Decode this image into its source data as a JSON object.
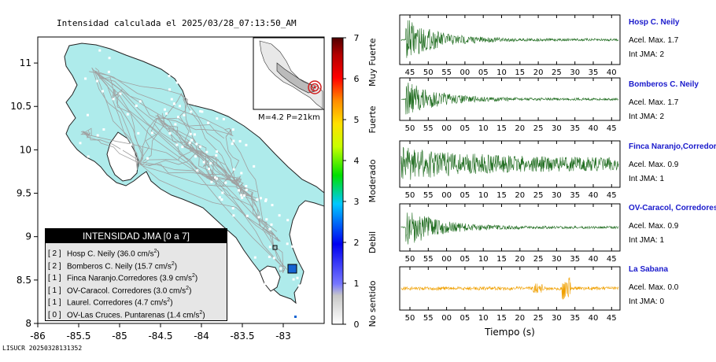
{
  "title": "Intensidad calculada el 2025/03/28_07:13:50_AM",
  "footer": "LISUCR 20250328131352",
  "colors": {
    "land": "#aeebeb",
    "sea": "#ffffff",
    "roads": "#a0a0a0",
    "trace_green": "#1d6b1d",
    "trace_orange": "#f0a000",
    "station_marker": "#1464d2",
    "epicenter": "#d21e1e"
  },
  "inset": {
    "label": "M=4.2 P=21km"
  },
  "legend": {
    "title": "INTENSIDAD JMA [0 a 7]",
    "rows": [
      {
        "jma": "[ 2 ]",
        "text": "Hosp C. Neily (36.0 cm/s",
        "sup": "2",
        "close": ")"
      },
      {
        "jma": "[ 2 ]",
        "text": "Bomberos C. Neily (15.7 cm/s",
        "sup": "2",
        "close": ")"
      },
      {
        "jma": "[ 1 ]",
        "text": "Finca Naranjo.Corredores (3.9 cm/s",
        "sup": "2",
        "close": ")"
      },
      {
        "jma": "[ 1 ]",
        "text": "OV-Caracol. Corredores (3.0 cm/s",
        "sup": "2",
        "close": ")"
      },
      {
        "jma": "[ 1 ]",
        "text": "Laurel. Corredores (4.7 cm/s",
        "sup": "2",
        "close": ")"
      },
      {
        "jma": "[ 0 ]",
        "text": "OV-Las Cruces. Puntarenas (1.4 cm/s",
        "sup": "2",
        "close": ")"
      }
    ]
  },
  "chart_data": [
    {
      "type": "map",
      "x_ticks": [
        "-86",
        "-85.5",
        "-85",
        "-84.5",
        "-84",
        "-83.5",
        "-83"
      ],
      "y_ticks": [
        "8",
        "8.5",
        "9",
        "9.5",
        "10",
        "10.5",
        "11"
      ],
      "xlim": [
        -86,
        -82.5
      ],
      "ylim": [
        8,
        11.3
      ]
    },
    {
      "type": "heatmap",
      "role": "colorbar",
      "ticks": [
        "0",
        "1",
        "2",
        "3",
        "4",
        "5",
        "6",
        "7"
      ],
      "range": [
        0,
        7
      ],
      "category_labels": [
        "No sentido",
        "Debil",
        "Moderado",
        "Fuerte",
        "Muy Fuerte"
      ]
    },
    {
      "type": "line",
      "xlabel": "Tiempo (s)",
      "traces": [
        {
          "name": "Hosp C. Neily",
          "accel": "Acel. Max. 1.7",
          "jma": "Int JMA: 2",
          "color": "green",
          "ticks": [
            "45",
            "50",
            "55",
            "00",
            "05",
            "10",
            "15",
            "20",
            "25",
            "30",
            "35",
            "40"
          ]
        },
        {
          "name": "Bomberos C. Neily",
          "accel": "Acel. Max. 1.7",
          "jma": "Int JMA: 2",
          "color": "green",
          "ticks": [
            "50",
            "55",
            "00",
            "05",
            "10",
            "15",
            "20",
            "25",
            "30",
            "35",
            "40",
            "45"
          ]
        },
        {
          "name": "Finca Naranjo,Corredores",
          "accel": "Acel. Max. 0.9",
          "jma": "Int JMA: 1",
          "color": "green",
          "ticks": [
            "50",
            "55",
            "00",
            "05",
            "10",
            "15",
            "20",
            "25",
            "30",
            "35",
            "40",
            "45"
          ]
        },
        {
          "name": "OV-Caracol, Corredores",
          "accel": "Acel. Max. 0.9",
          "jma": "Int JMA: 1",
          "color": "green",
          "ticks": [
            "50",
            "55",
            "00",
            "05",
            "10",
            "15",
            "20",
            "25",
            "30",
            "35",
            "40",
            "45"
          ]
        },
        {
          "name": "La Sabana",
          "accel": "Acel. Max. 0.0",
          "jma": "Int JMA: 0",
          "color": "orange",
          "ticks": [
            "50",
            "55",
            "00",
            "05",
            "10",
            "15",
            "20",
            "25",
            "30",
            "35",
            "40",
            "45"
          ]
        }
      ]
    }
  ]
}
